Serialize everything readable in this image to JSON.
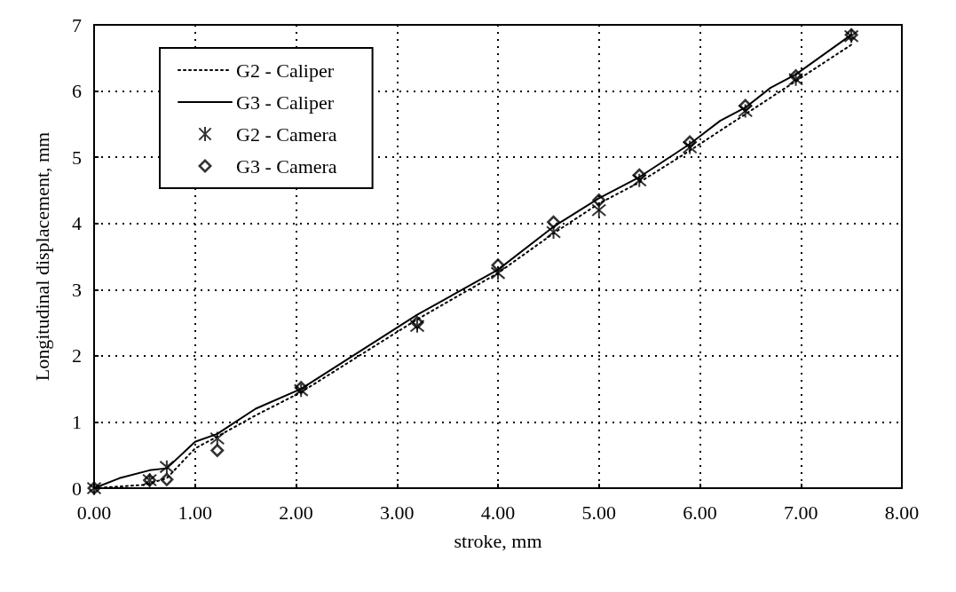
{
  "chart_data": {
    "type": "line",
    "xlabel": "stroke, mm",
    "ylabel": "Longitudinal displacement, mm",
    "xlim": [
      0,
      8
    ],
    "ylim": [
      0,
      7
    ],
    "xticks": [
      {
        "value": 0,
        "label": "0.00"
      },
      {
        "value": 1,
        "label": "1.00"
      },
      {
        "value": 2,
        "label": "2.00"
      },
      {
        "value": 3,
        "label": "3.00"
      },
      {
        "value": 4,
        "label": "4.00"
      },
      {
        "value": 5,
        "label": "5.00"
      },
      {
        "value": 6,
        "label": "6.00"
      },
      {
        "value": 7,
        "label": "7.00"
      },
      {
        "value": 8,
        "label": "8.00"
      }
    ],
    "yticks": [
      0,
      1,
      2,
      3,
      4,
      5,
      6,
      7
    ],
    "grid": true,
    "legend": "top left",
    "series": [
      {
        "name": "G2 - Caliper",
        "color": "#000000",
        "line_style": "dotted",
        "marker": "none",
        "x": [
          0,
          0.5,
          0.72,
          1.0,
          1.22,
          1.6,
          2.05,
          3.2,
          4.0,
          4.55,
          5.0,
          5.4,
          5.9,
          6.45,
          6.95,
          7.5
        ],
        "values": [
          0,
          0.05,
          0.15,
          0.6,
          0.78,
          1.1,
          1.45,
          2.55,
          3.25,
          3.85,
          4.3,
          4.62,
          5.1,
          5.65,
          6.15,
          6.7
        ]
      },
      {
        "name": "G3 - Caliper",
        "color": "#000000",
        "line_style": "solid",
        "marker": "none",
        "x": [
          0,
          0.25,
          0.55,
          0.72,
          1.0,
          1.22,
          1.6,
          2.05,
          3.2,
          4.0,
          4.55,
          5.0,
          5.4,
          5.9,
          6.2,
          6.45,
          6.7,
          6.95,
          7.5
        ],
        "values": [
          0,
          0.15,
          0.27,
          0.3,
          0.7,
          0.82,
          1.2,
          1.5,
          2.62,
          3.3,
          3.95,
          4.38,
          4.7,
          5.2,
          5.55,
          5.75,
          6.05,
          6.25,
          6.85
        ]
      },
      {
        "name": "G2 - Camera",
        "type": "scatter",
        "color": "#000000",
        "marker": "cross",
        "x": [
          0,
          0.55,
          0.72,
          1.22,
          2.05,
          3.2,
          4.0,
          4.55,
          5.0,
          5.4,
          5.9,
          6.45,
          6.95,
          7.5
        ],
        "values": [
          0,
          0.12,
          0.32,
          0.75,
          1.48,
          2.45,
          3.25,
          3.87,
          4.2,
          4.65,
          5.15,
          5.7,
          6.18,
          6.83
        ]
      },
      {
        "name": "G3 - Camera",
        "type": "scatter",
        "color": "#000000",
        "marker": "diamond",
        "x": [
          0,
          0.55,
          0.72,
          1.22,
          2.05,
          3.2,
          4.0,
          4.55,
          5.0,
          5.4,
          5.9,
          6.45,
          6.95,
          7.5
        ],
        "values": [
          0,
          0.12,
          0.13,
          0.57,
          1.52,
          2.5,
          3.37,
          4.02,
          4.35,
          4.73,
          5.23,
          5.78,
          6.23,
          6.85
        ]
      }
    ]
  }
}
